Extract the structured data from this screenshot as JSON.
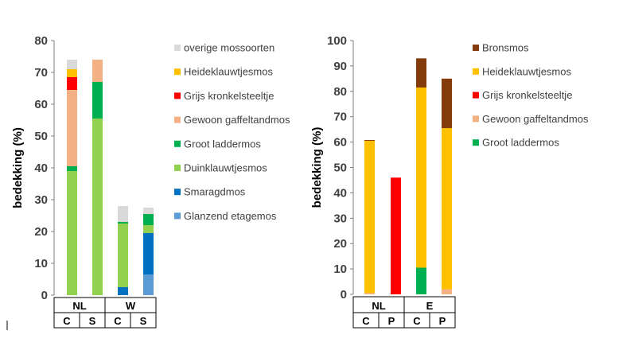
{
  "chart_data": [
    {
      "type": "bar",
      "stacked": true,
      "ylabel": "bedekking (%)",
      "ylim": [
        0,
        80
      ],
      "yticks": [
        0,
        10,
        20,
        30,
        40,
        50,
        60,
        70,
        80
      ],
      "categories": [
        "C",
        "S",
        "C",
        "S"
      ],
      "groups": [
        {
          "label": "NL",
          "categories": [
            "C",
            "S"
          ]
        },
        {
          "label": "W",
          "categories": [
            "C",
            "S"
          ]
        }
      ],
      "grid": false,
      "legend_position": "right",
      "series": [
        {
          "name": "Glanzend etagemos",
          "color": "#5b9bd5",
          "values": [
            0,
            0,
            0,
            6.5
          ]
        },
        {
          "name": "Smaragdmos",
          "color": "#0070c0",
          "values": [
            0,
            0,
            2.5,
            13
          ]
        },
        {
          "name": "Duinklauwtjesmos",
          "color": "#92d050",
          "values": [
            39,
            55.5,
            20,
            2.5
          ]
        },
        {
          "name": "Groot laddermos",
          "color": "#00b050",
          "values": [
            1.5,
            11.5,
            0.5,
            3.5
          ]
        },
        {
          "name": "Gewoon gaffeltandmos",
          "color": "#f4b183",
          "values": [
            24,
            7,
            0,
            0
          ]
        },
        {
          "name": "Grijs kronkelsteeltje",
          "color": "#ff0000",
          "values": [
            4,
            0,
            0,
            0
          ]
        },
        {
          "name": "Heideklauwtjesmos",
          "color": "#ffc000",
          "values": [
            2.5,
            0,
            0,
            0
          ]
        },
        {
          "name": "overige mossoorten",
          "color": "#d9d9d9",
          "values": [
            3,
            0,
            5,
            2
          ]
        }
      ]
    },
    {
      "type": "bar",
      "stacked": true,
      "ylabel": "bedekking (%)",
      "ylim": [
        0,
        100
      ],
      "yticks": [
        0,
        10,
        20,
        30,
        40,
        50,
        60,
        70,
        80,
        90,
        100
      ],
      "categories": [
        "C",
        "P",
        "C",
        "P"
      ],
      "groups": [
        {
          "label": "NL",
          "categories": [
            "C",
            "P"
          ]
        },
        {
          "label": "E",
          "categories": [
            "C",
            "P"
          ]
        }
      ],
      "grid": false,
      "legend_position": "right",
      "series": [
        {
          "name": "Groot laddermos",
          "color": "#00b050",
          "values": [
            0,
            0,
            10.5,
            0
          ]
        },
        {
          "name": "Gewoon gaffeltandmos",
          "color": "#f4b183",
          "values": [
            0.5,
            0,
            0,
            2
          ]
        },
        {
          "name": "Grijs kronkelsteeltje",
          "color": "#ff0000",
          "values": [
            0,
            46,
            0,
            0
          ]
        },
        {
          "name": "Heideklauwtjesmos",
          "color": "#ffc000",
          "values": [
            60,
            0,
            71,
            63.5
          ]
        },
        {
          "name": "Bronsmos",
          "color": "#843c0c",
          "values": [
            0.3,
            0,
            11.5,
            19.5
          ]
        }
      ]
    }
  ]
}
